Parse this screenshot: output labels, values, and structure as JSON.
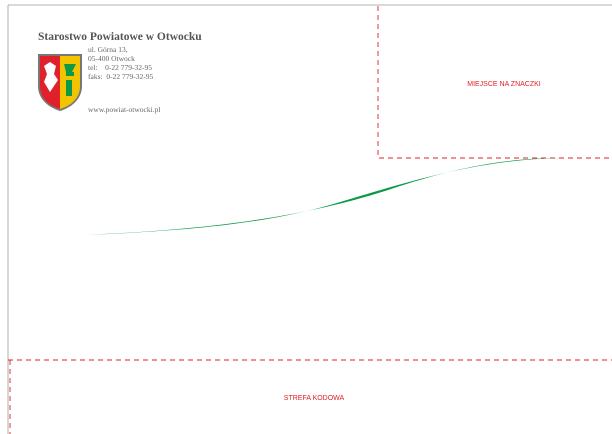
{
  "header": {
    "title": "Starostwo Powiatowe w Otwocku",
    "address": [
      "ul. Górna 13,",
      "05-400 Otwock",
      "tel:    0-22 779-32-95",
      "faks:  0-22 779-32-95"
    ],
    "website": "www.powiat-otwocki.pl"
  },
  "stamp_area": {
    "label": "MIEJSCE NA ZNACZKI"
  },
  "code_zone": {
    "label": "STREFA KODOWA"
  }
}
